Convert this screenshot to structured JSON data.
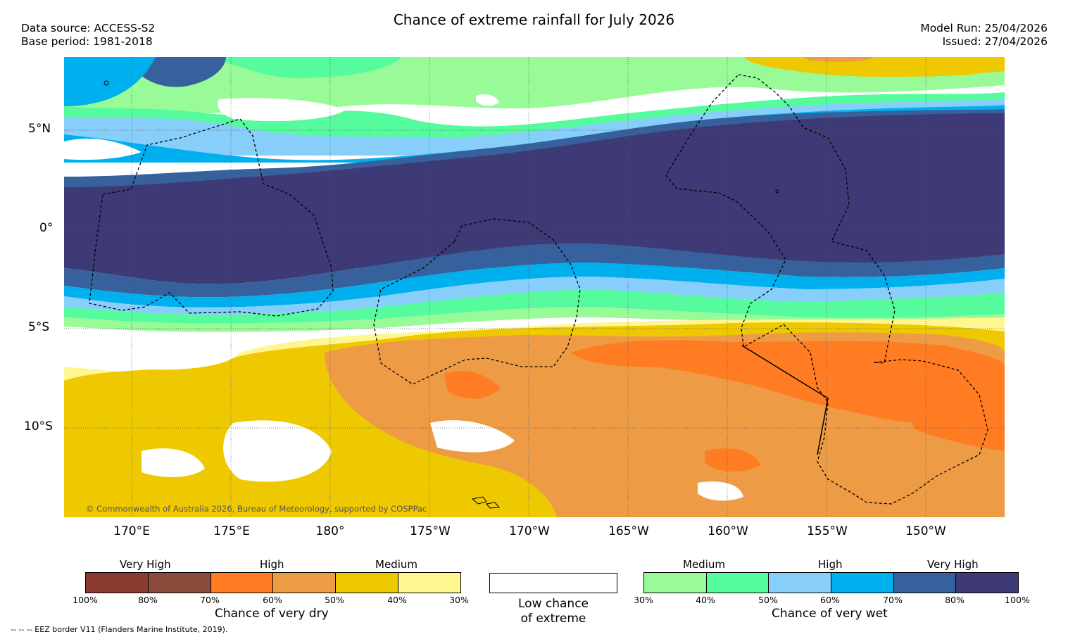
{
  "header": {
    "title": "Chance of extreme rainfall for July 2026",
    "data_source": "Data source: ACCESS-S2",
    "base_period": "Base period: 1981-2018",
    "model_run": "Model Run: 25/04/2026",
    "issued": "Issued: 27/04/2026"
  },
  "map": {
    "lat_labels": [
      "5°N",
      "0°",
      "5°S",
      "10°S"
    ],
    "lon_labels": [
      "170°E",
      "175°E",
      "180°",
      "175°W",
      "170°W",
      "165°W",
      "160°W",
      "155°W",
      "150°W"
    ],
    "copyright": "© Commonwealth of Australia 2026, Bureau of Meteorology, supported by COSPPac"
  },
  "legend": {
    "dry": {
      "title": "Chance of very dry",
      "headings": [
        "Very High",
        "High",
        "Medium"
      ],
      "ticks": [
        "100%",
        "80%",
        "70%",
        "60%",
        "50%",
        "40%",
        "30%"
      ],
      "colors": [
        "#8b3a32",
        "#8b4a3c",
        "#ff7c22",
        "#ee9b45",
        "#eec800",
        "#fff68f"
      ]
    },
    "low": {
      "label_line1": "Low chance",
      "label_line2": "of extreme"
    },
    "wet": {
      "title": "Chance of very wet",
      "headings": [
        "Medium",
        "High",
        "Very High"
      ],
      "ticks": [
        "30%",
        "40%",
        "50%",
        "60%",
        "70%",
        "80%",
        "100%"
      ],
      "colors": [
        "#98fb98",
        "#55fb9d",
        "#87cefa",
        "#00b0ee",
        "#36619c",
        "#3e3a76"
      ]
    },
    "eez_note": "-- -- -- EEZ border V11 (Flanders Marine Institute, 2019)."
  }
}
